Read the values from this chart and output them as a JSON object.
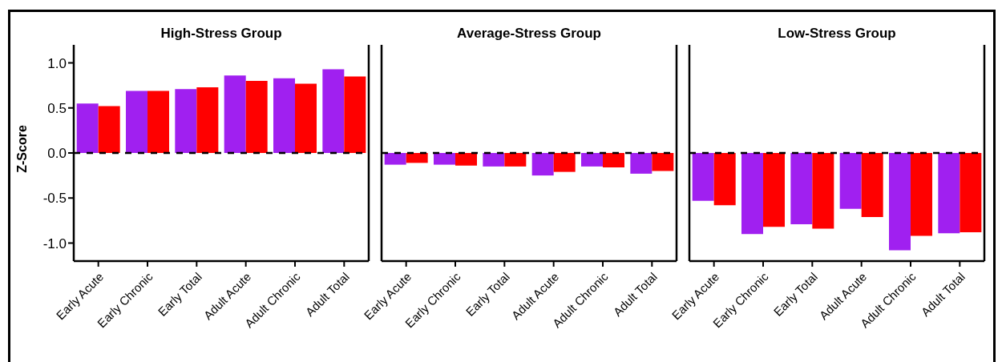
{
  "chart_data": [
    {
      "type": "bar",
      "title": "High-Stress Group",
      "ylabel": "Z-Score",
      "categories": [
        "Early Acute",
        "Early Chronic",
        "Early Total",
        "Adult Acute",
        "Adult Chronic",
        "Adult Total"
      ],
      "series": [
        {
          "color": "#a020f0",
          "values": [
            0.55,
            0.69,
            0.71,
            0.86,
            0.83,
            0.93
          ]
        },
        {
          "color": "#ff0000",
          "values": [
            0.52,
            0.69,
            0.73,
            0.8,
            0.77,
            0.85
          ]
        }
      ],
      "ylim": [
        -1.2,
        1.2
      ],
      "yticks": [
        {
          "value": -1,
          "label": "-1.0"
        },
        {
          "value": -0.5,
          "label": "-0.5"
        },
        {
          "value": 0,
          "label": "0.0"
        },
        {
          "value": 0.5,
          "label": "0.5"
        },
        {
          "value": 1,
          "label": "1.0"
        }
      ],
      "ref_lines": [
        {
          "axis": "y",
          "value": 0,
          "color": "#000000",
          "line_style": "dashed"
        }
      ]
    },
    {
      "type": "bar",
      "title": "Average-Stress Group",
      "categories": [
        "Early Acute",
        "Early Chronic",
        "Early Total",
        "Adult Acute",
        "Adult Chronic",
        "Adult Total"
      ],
      "series": [
        {
          "color": "#a020f0",
          "values": [
            -0.13,
            -0.13,
            -0.15,
            -0.25,
            -0.15,
            -0.23
          ]
        },
        {
          "color": "#ff0000",
          "values": [
            -0.11,
            -0.14,
            -0.15,
            -0.21,
            -0.16,
            -0.2
          ]
        }
      ],
      "ylim": [
        -1.2,
        1.2
      ],
      "tick_labels": "x",
      "ref_lines": [
        {
          "axis": "y",
          "value": 0,
          "color": "#000000",
          "line_style": "dashed"
        }
      ]
    },
    {
      "type": "bar",
      "title": "Low-Stress Group",
      "categories": [
        "Early Acute",
        "Early Chronic",
        "Early Total",
        "Adult Acute",
        "Adult Chronic",
        "Adult Total"
      ],
      "series": [
        {
          "color": "#a020f0",
          "values": [
            -0.53,
            -0.9,
            -0.79,
            -0.62,
            -1.08,
            -0.89
          ]
        },
        {
          "color": "#ff0000",
          "values": [
            -0.58,
            -0.82,
            -0.84,
            -0.71,
            -0.92,
            -0.88
          ]
        }
      ],
      "ylim": [
        -1.2,
        1.2
      ],
      "tick_labels": "x",
      "ref_lines": [
        {
          "axis": "y",
          "value": 0,
          "color": "#000000",
          "line_style": "dashed"
        }
      ]
    }
  ]
}
